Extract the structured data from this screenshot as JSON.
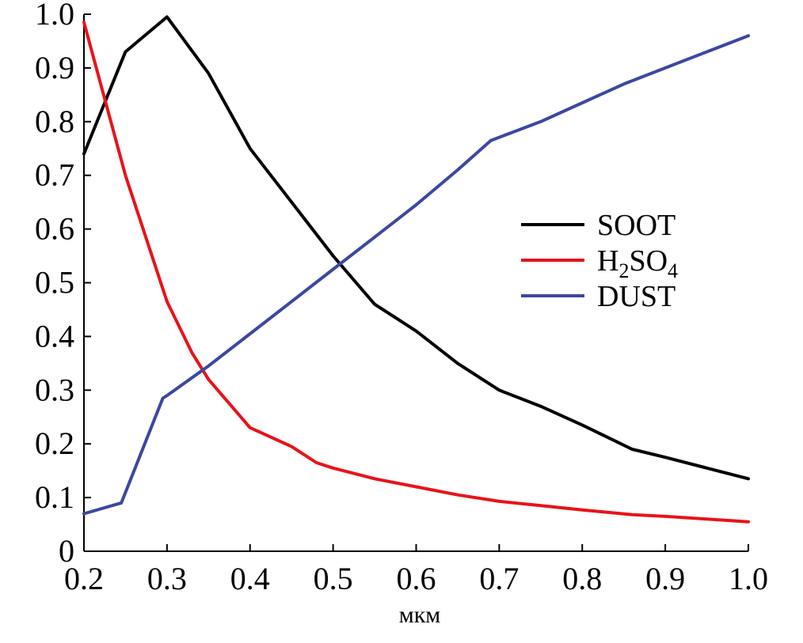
{
  "chart_data": {
    "type": "line",
    "xlabel": "мкм",
    "ylabel": "",
    "title": "",
    "xlim": [
      0.2,
      1.0
    ],
    "ylim": [
      0,
      1.0
    ],
    "xticks": [
      "0.2",
      "0.3",
      "0.4",
      "0.5",
      "0.6",
      "0.7",
      "0.8",
      "0.9",
      "1.0"
    ],
    "yticks": [
      "0",
      "0.1",
      "0.2",
      "0.3",
      "0.4",
      "0.5",
      "0.6",
      "0.7",
      "0.8",
      "0.9",
      "1.0"
    ],
    "legend_position": "right",
    "grid": false,
    "series": [
      {
        "name": "SOOT",
        "color": "#000000",
        "x": [
          0.2,
          0.25,
          0.3,
          0.35,
          0.4,
          0.45,
          0.5,
          0.55,
          0.6,
          0.65,
          0.7,
          0.75,
          0.8,
          0.86,
          0.9,
          0.95,
          1.0
        ],
        "y": [
          0.74,
          0.93,
          0.995,
          0.89,
          0.75,
          0.65,
          0.55,
          0.46,
          0.41,
          0.35,
          0.3,
          0.27,
          0.235,
          0.19,
          0.175,
          0.155,
          0.135
        ]
      },
      {
        "name": "H2SO4",
        "name_main": "H",
        "name_sub1": "2",
        "name_mid": "SO",
        "name_sub2": "4",
        "color": "#e8131a",
        "x": [
          0.2,
          0.25,
          0.3,
          0.33,
          0.35,
          0.4,
          0.45,
          0.48,
          0.5,
          0.55,
          0.6,
          0.65,
          0.7,
          0.75,
          0.8,
          0.86,
          0.9,
          0.95,
          1.0
        ],
        "y": [
          0.985,
          0.7,
          0.465,
          0.37,
          0.32,
          0.23,
          0.195,
          0.165,
          0.155,
          0.135,
          0.12,
          0.105,
          0.093,
          0.085,
          0.077,
          0.068,
          0.065,
          0.06,
          0.055
        ]
      },
      {
        "name": "DUST",
        "color": "#3c48a0",
        "x": [
          0.2,
          0.245,
          0.295,
          0.3,
          0.35,
          0.4,
          0.45,
          0.5,
          0.55,
          0.6,
          0.65,
          0.69,
          0.75,
          0.8,
          0.85,
          0.9,
          0.95,
          1.0
        ],
        "y": [
          0.07,
          0.09,
          0.285,
          0.29,
          0.345,
          0.405,
          0.465,
          0.525,
          0.585,
          0.645,
          0.71,
          0.765,
          0.8,
          0.835,
          0.87,
          0.9,
          0.93,
          0.96
        ]
      }
    ]
  }
}
